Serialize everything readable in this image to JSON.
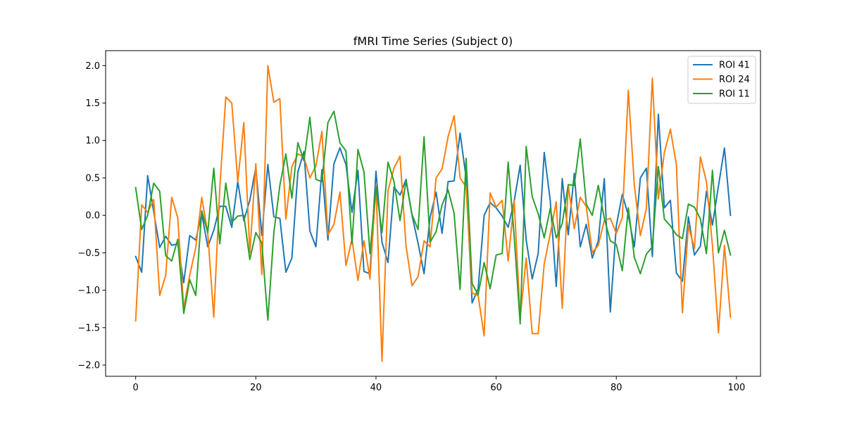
{
  "chart_data": {
    "type": "line",
    "title": "fMRI Time Series (Subject 0)",
    "xlabel": "",
    "ylabel": "",
    "xlim": [
      -5,
      104
    ],
    "ylim": [
      -2.15,
      2.2
    ],
    "xticks": [
      0,
      20,
      40,
      60,
      80,
      100
    ],
    "xtick_labels": [
      "0",
      "20",
      "40",
      "60",
      "80",
      "100"
    ],
    "yticks": [
      -2.0,
      -1.5,
      -1.0,
      -0.5,
      0.0,
      0.5,
      1.0,
      1.5,
      2.0
    ],
    "ytick_labels": [
      "−2.0",
      "−1.5",
      "−1.0",
      "−0.5",
      "0.0",
      "0.5",
      "1.0",
      "1.5",
      "2.0"
    ],
    "grid": false,
    "legend_position": "top-right",
    "x": [
      0,
      1,
      2,
      3,
      4,
      5,
      6,
      7,
      8,
      9,
      10,
      11,
      12,
      13,
      14,
      15,
      16,
      17,
      18,
      19,
      20,
      21,
      22,
      23,
      24,
      25,
      26,
      27,
      28,
      29,
      30,
      31,
      32,
      33,
      34,
      35,
      36,
      37,
      38,
      39,
      40,
      41,
      42,
      43,
      44,
      45,
      46,
      47,
      48,
      49,
      50,
      51,
      52,
      53,
      54,
      55,
      56,
      57,
      58,
      59,
      60,
      61,
      62,
      63,
      64,
      65,
      66,
      67,
      68,
      69,
      70,
      71,
      72,
      73,
      74,
      75,
      76,
      77,
      78,
      79,
      80,
      81,
      82,
      83,
      84,
      85,
      86,
      87,
      88,
      89,
      90,
      91,
      92,
      93,
      94,
      95,
      96,
      97,
      98,
      99
    ],
    "series": [
      {
        "name": "ROI 41",
        "color": "#1f77b4",
        "values": [
          -0.55,
          -0.76,
          0.53,
          0.05,
          -0.43,
          -0.28,
          -0.4,
          -0.38,
          -0.9,
          -0.27,
          -0.33,
          0.02,
          -0.42,
          -0.2,
          0.12,
          0.12,
          -0.16,
          0.45,
          -0.07,
          0.2,
          0.64,
          -0.27,
          0.68,
          -0.02,
          -0.04,
          -0.76,
          -0.57,
          0.58,
          0.85,
          -0.21,
          -0.42,
          0.61,
          -0.33,
          0.69,
          0.9,
          0.68,
          0.04,
          0.6,
          -0.75,
          -0.78,
          0.59,
          -0.36,
          -0.63,
          0.38,
          0.27,
          0.48,
          0.0,
          -0.37,
          -0.78,
          -0.03,
          0.31,
          -0.24,
          0.45,
          0.46,
          1.1,
          0.5,
          -1.17,
          -0.98,
          0.0,
          0.17,
          0.1,
          -0.01,
          -0.16,
          0.19,
          0.67,
          -0.33,
          -0.85,
          -0.51,
          0.84,
          0.2,
          -0.95,
          0.49,
          -0.26,
          0.56,
          -0.42,
          -0.12,
          -0.57,
          -0.34,
          0.49,
          -1.29,
          -0.14,
          0.28,
          0.0,
          -0.42,
          0.5,
          0.63,
          -0.55,
          1.35,
          0.1,
          0.2,
          -0.77,
          -0.88,
          -0.02,
          -0.53,
          -0.41,
          0.32,
          -0.13,
          0.39,
          0.9,
          0.0
        ]
      },
      {
        "name": "ROI 24",
        "color": "#ff7f0e",
        "values": [
          -1.41,
          0.14,
          0.04,
          0.21,
          -1.07,
          -0.8,
          0.24,
          -0.03,
          -1.24,
          -0.8,
          -0.43,
          0.24,
          -0.24,
          -1.36,
          0.36,
          1.58,
          1.5,
          0.45,
          1.24,
          -0.5,
          0.69,
          -0.79,
          2.0,
          1.51,
          1.56,
          -0.05,
          0.65,
          0.82,
          0.78,
          0.5,
          0.66,
          1.12,
          -0.26,
          -0.12,
          0.31,
          -0.67,
          -0.32,
          -0.87,
          -0.34,
          -0.85,
          0.4,
          -1.95,
          0.33,
          0.63,
          0.79,
          -0.41,
          -0.94,
          -0.82,
          -0.34,
          -0.42,
          0.5,
          0.62,
          1.05,
          1.33,
          0.5,
          0.38,
          -1.04,
          -1.07,
          -1.61,
          0.3,
          0.11,
          0.2,
          -0.61,
          0.2,
          -1.37,
          -0.57,
          -1.58,
          -1.58,
          -0.65,
          -0.25,
          0.18,
          -1.24,
          0.4,
          -0.18,
          0.24,
          0.12,
          -0.5,
          -0.4,
          -0.07,
          -0.04,
          -0.24,
          -0.03,
          1.67,
          0.4,
          -0.27,
          0.09,
          1.83,
          0.22,
          0.84,
          1.15,
          0.68,
          -1.3,
          -0.14,
          -0.44,
          0.78,
          0.45,
          -0.4,
          -1.57,
          -0.4,
          -1.36
        ]
      },
      {
        "name": "ROI 11",
        "color": "#2ca02c",
        "values": [
          0.37,
          -0.19,
          0.0,
          0.43,
          0.32,
          -0.54,
          -0.61,
          -0.32,
          -1.31,
          -0.86,
          -1.07,
          0.06,
          -0.23,
          0.63,
          -0.38,
          0.43,
          -0.09,
          -0.01,
          0.0,
          -0.59,
          -0.23,
          -0.37,
          -1.4,
          -0.23,
          0.4,
          0.82,
          0.23,
          0.97,
          0.73,
          1.31,
          0.48,
          0.45,
          1.24,
          1.39,
          0.97,
          0.86,
          -0.38,
          0.88,
          0.58,
          -0.51,
          0.38,
          -0.23,
          0.71,
          0.45,
          -0.07,
          0.46,
          0.01,
          -0.19,
          1.05,
          -0.36,
          -0.22,
          0.14,
          0.34,
          0.03,
          -0.99,
          0.76,
          -0.91,
          -1.06,
          -0.63,
          -0.98,
          -0.53,
          -0.51,
          0.71,
          -0.28,
          -1.45,
          0.92,
          0.25,
          0.02,
          -0.3,
          0.09,
          -0.3,
          -0.11,
          0.41,
          0.4,
          1.02,
          0.15,
          0.0,
          0.4,
          -0.04,
          -0.34,
          -0.39,
          -0.74,
          0.1,
          -0.56,
          -0.78,
          -0.52,
          -0.42,
          0.65,
          -0.05,
          -0.14,
          -0.26,
          -0.31,
          0.15,
          0.11,
          -0.05,
          -0.51,
          0.6,
          -0.5,
          -0.2,
          -0.53
        ]
      }
    ]
  }
}
